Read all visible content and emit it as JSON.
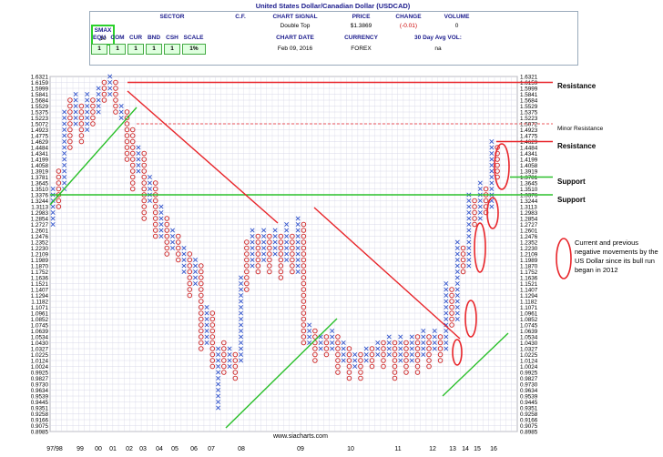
{
  "header": {
    "title": "United States Dollar/Canadian Dollar (USDCAD)",
    "smax_label": "SMAX",
    "smax_value": "10",
    "sector_label": "SECTOR",
    "cf_label": "C.F.",
    "chart_signal_label": "CHART SIGNAL",
    "chart_signal_value": "Double Top",
    "price_label": "PRICE",
    "price_value": "$1.3869",
    "change_label": "CHANGE",
    "change_value": "(-0.01)",
    "volume_label": "VOLUME",
    "volume_value": "0",
    "equ_label": "EQU",
    "com_label": "COM",
    "cur_label": "CUR",
    "bnd_label": "BND",
    "csh_label": "CSH",
    "scale_label": "SCALE",
    "equ_value": "1",
    "com_value": "1",
    "cur_value": "1",
    "bnd_value": "1",
    "csh_value": "1",
    "scale_value": "1%",
    "chart_date_label": "CHART DATE",
    "chart_date_value": "Feb 09, 2016",
    "currency_label": "CURRENCY",
    "currency_value": "FOREX",
    "avg_vol_label": "30 Day Avg VOL:",
    "avg_vol_value": "na"
  },
  "annotations": {
    "resistance_top": "Resistance",
    "minor_resistance": "Minor Resistance",
    "resistance_mid": "Resistance",
    "support_upper": "Support",
    "support_lower": "Support",
    "note": "Current and previous negative movements by the US Dollar since its bull run began in 2012",
    "watermark": "www.siacharts.com"
  },
  "colors": {
    "x_color": "#3355cc",
    "o_color": "#cc2222",
    "resistance_line": "#e8252a",
    "support_line": "#2bc02b",
    "grid": "#d8d8e8"
  },
  "chart_data": {
    "type": "point-and-figure",
    "title": "United States Dollar/Canadian Dollar (USDCAD)",
    "y_ticks": [
      "1.6321",
      "1.6159",
      "1.5999",
      "1.5841",
      "1.5684",
      "1.5529",
      "1.5375",
      "1.5223",
      "1.5072",
      "1.4923",
      "1.4775",
      "1.4629",
      "1.4484",
      "1.4341",
      "1.4199",
      "1.4058",
      "1.3919",
      "1.3781",
      "1.3645",
      "1.3510",
      "1.3376",
      "1.3244",
      "1.3113",
      "1.2983",
      "1.2854",
      "1.2727",
      "1.2601",
      "1.2476",
      "1.2352",
      "1.2230",
      "1.2109",
      "1.1989",
      "1.1870",
      "1.1752",
      "1.1636",
      "1.1521",
      "1.1407",
      "1.1294",
      "1.1182",
      "1.1071",
      "1.0961",
      "1.0852",
      "1.0745",
      "1.0639",
      "1.0534",
      "1.0430",
      "1.0327",
      "1.0225",
      "1.0124",
      "1.0024",
      "0.9925",
      "0.9827",
      "0.9730",
      "0.9634",
      "0.9539",
      "0.9445",
      "0.9351",
      "0.9258",
      "0.9166",
      "0.9075",
      "0.8985"
    ],
    "x_labels": [
      "97/98",
      "99",
      "00",
      "01",
      "02",
      "03",
      "04",
      "05",
      "06",
      "07",
      "08",
      "09",
      "10",
      "11",
      "12",
      "13",
      "14",
      "15",
      "16"
    ],
    "levels": {
      "resistance": 1.6159,
      "minor_resistance": 1.5072,
      "resistance_2": 1.4629,
      "support_1": 1.3781,
      "support_2": 1.3376
    }
  }
}
